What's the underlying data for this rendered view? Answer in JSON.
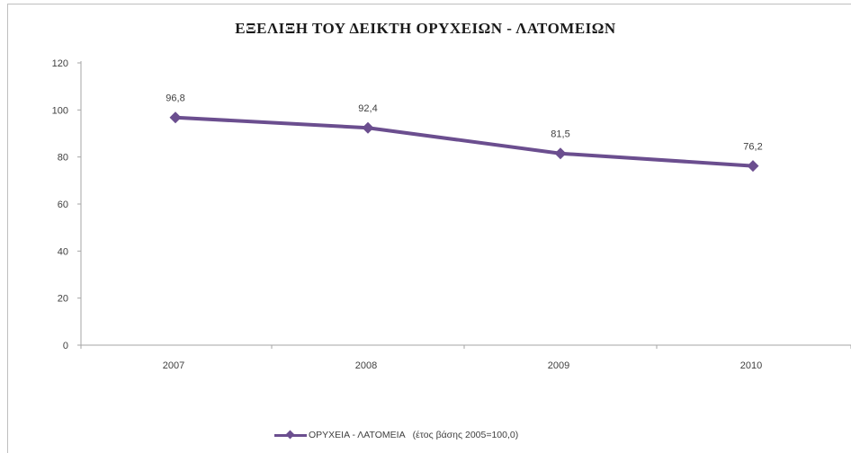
{
  "chart_data": {
    "type": "line",
    "title": "ΕΞΕΛΙΞΗ ΤΟΥ ΔΕΙΚΤΗ ΟΡΥΧΕΙΩΝ - ΛΑΤΟΜΕΙΩΝ",
    "categories": [
      "2007",
      "2008",
      "2009",
      "2010"
    ],
    "series": [
      {
        "name": "ΟΡΥΧΕΙΑ - ΛΑΤΟΜΕΙΑ",
        "values": [
          96.8,
          92.4,
          81.5,
          76.2
        ],
        "data_labels": [
          "96,8",
          "92,4",
          "81,5",
          "76,2"
        ],
        "color": "#6b4e8f"
      }
    ],
    "xlabel": "",
    "ylabel": "",
    "ylim": [
      0,
      120
    ],
    "yticks": [
      0,
      20,
      40,
      60,
      80,
      100,
      120
    ],
    "grid": false,
    "legend": {
      "position": "bottom",
      "label": "ΟΡΥΧΕΙΑ - ΛΑΤΟΜΕΙΑ",
      "note": "(έτος βάσης 2005=100,0)"
    }
  }
}
